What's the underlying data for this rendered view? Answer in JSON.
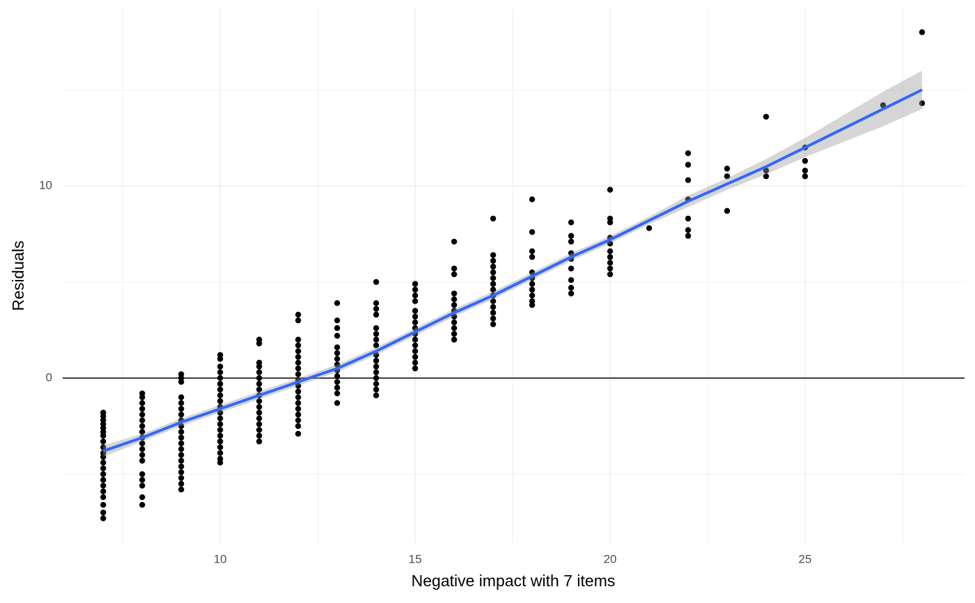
{
  "chart_data": {
    "type": "scatter",
    "x_label": "Negative impact with 7 items",
    "y_label": "Residuals",
    "xlim": [
      5.96,
      29.09
    ],
    "ylim": [
      -8.59,
      19.24
    ],
    "xticks": [
      10,
      15,
      20,
      25
    ],
    "yticks": [
      0,
      10
    ],
    "grid": true,
    "minor_grid": true,
    "hline": 0,
    "series": [
      {
        "type": "scatter",
        "color": "#000000",
        "x": [
          7,
          7,
          7,
          7,
          7,
          7,
          7,
          7,
          7,
          7,
          7,
          7,
          7,
          7,
          7,
          7,
          7,
          7,
          7,
          7,
          7,
          8,
          8,
          8,
          8,
          8,
          8,
          8,
          8,
          8,
          8,
          8,
          8,
          8,
          8,
          8,
          8,
          8,
          8,
          9,
          9,
          9,
          9,
          9,
          9,
          9,
          9,
          9,
          9,
          9,
          9,
          9,
          9,
          9,
          9,
          9,
          9,
          9,
          9,
          10,
          10,
          10,
          10,
          10,
          10,
          10,
          10,
          10,
          10,
          10,
          10,
          10,
          10,
          10,
          10,
          10,
          10,
          10,
          10,
          11,
          11,
          11,
          11,
          11,
          11,
          11,
          11,
          11,
          11,
          11,
          11,
          11,
          11,
          11,
          11,
          11,
          12,
          12,
          12,
          12,
          12,
          12,
          12,
          12,
          12,
          12,
          12,
          12,
          12,
          12,
          12,
          12,
          12,
          12,
          12,
          13,
          13,
          13,
          13,
          13,
          13,
          13,
          13,
          13,
          13,
          13,
          13,
          13,
          13,
          14,
          14,
          14,
          14,
          14,
          14,
          14,
          14,
          14,
          14,
          14,
          14,
          14,
          14,
          14,
          14,
          15,
          15,
          15,
          15,
          15,
          15,
          15,
          15,
          15,
          15,
          15,
          15,
          15,
          15,
          15,
          16,
          16,
          16,
          16,
          16,
          16,
          16,
          16,
          16,
          16,
          16,
          16,
          17,
          17,
          17,
          17,
          17,
          17,
          17,
          17,
          17,
          17,
          17,
          17,
          17,
          17,
          18,
          18,
          18,
          18,
          18,
          18,
          18,
          18,
          18,
          18,
          18,
          19,
          19,
          19,
          19,
          19,
          19,
          19,
          19,
          19,
          20,
          20,
          20,
          20,
          20,
          20,
          20,
          20,
          20,
          20,
          21,
          22,
          22,
          22,
          22,
          22,
          22,
          22,
          23,
          23,
          23,
          24,
          24,
          24,
          25,
          25,
          25,
          25,
          27,
          28,
          28
        ],
        "values": [
          -1.8,
          -2.0,
          -2.2,
          -2.4,
          -2.6,
          -2.8,
          -3.0,
          -3.3,
          -3.6,
          -3.9,
          -4.1,
          -4.4,
          -4.7,
          -5.0,
          -5.3,
          -5.6,
          -5.9,
          -6.2,
          -6.6,
          -7.0,
          -7.3,
          -0.8,
          -1.0,
          -1.3,
          -1.6,
          -1.9,
          -2.2,
          -2.5,
          -2.8,
          -3.1,
          -3.4,
          -3.7,
          -4.0,
          -4.3,
          -5.0,
          -5.3,
          -5.6,
          -6.2,
          -6.6,
          0.2,
          0,
          -0.2,
          -1.0,
          -1.3,
          -1.6,
          -1.9,
          -2.2,
          -2.5,
          -2.8,
          -3.1,
          -3.4,
          -3.7,
          -4.0,
          -4.3,
          -4.6,
          -4.9,
          -5.2,
          -5.5,
          -5.8,
          1.2,
          1.0,
          0.6,
          0.3,
          0,
          -0.3,
          -0.6,
          -0.9,
          -1.2,
          -1.5,
          -1.8,
          -2.1,
          -2.4,
          -2.7,
          -3.0,
          -3.3,
          -3.6,
          -3.9,
          -4.2,
          -4.4,
          2.0,
          1.8,
          0.8,
          0.6,
          0.3,
          0,
          -0.3,
          -0.6,
          -0.9,
          -1.2,
          -1.5,
          -1.8,
          -2.1,
          -2.4,
          -2.7,
          -3.0,
          -3.3,
          3.3,
          3.0,
          2.0,
          1.7,
          1.4,
          1.1,
          0.8,
          0.5,
          0.2,
          -0.1,
          -0.4,
          -0.7,
          -1.0,
          -1.3,
          -1.6,
          -1.9,
          -2.2,
          -2.5,
          -2.9,
          3.9,
          3.0,
          2.6,
          2.2,
          1.6,
          1.3,
          1.0,
          0.7,
          0.4,
          0.1,
          -0.2,
          -0.5,
          -0.8,
          -1.3,
          5.0,
          3.9,
          3.6,
          3.3,
          2.6,
          2.3,
          2.0,
          1.7,
          1.2,
          0.9,
          0.6,
          0.3,
          0,
          -0.3,
          -0.6,
          -0.9,
          4.9,
          4.6,
          4.3,
          4.0,
          3.5,
          3.2,
          2.9,
          2.6,
          2.3,
          2.0,
          1.7,
          1.4,
          1.1,
          0.8,
          0.5,
          7.1,
          5.7,
          5.4,
          4.4,
          4.1,
          3.8,
          3.5,
          3.2,
          2.9,
          2.6,
          2.3,
          2.0,
          8.3,
          6.4,
          6.1,
          5.8,
          5.5,
          5.2,
          4.9,
          4.6,
          4.3,
          4.0,
          3.7,
          3.4,
          3.1,
          2.8,
          9.3,
          7.6,
          6.6,
          6.3,
          5.5,
          5.2,
          4.9,
          4.6,
          4.3,
          4.0,
          3.8,
          8.1,
          7.4,
          7.1,
          6.5,
          6.2,
          5.7,
          5.1,
          4.7,
          4.4,
          9.8,
          8.3,
          8.1,
          7.3,
          7.0,
          6.6,
          6.3,
          6.0,
          5.7,
          5.4,
          7.8,
          11.7,
          11.1,
          10.3,
          9.3,
          8.3,
          7.7,
          7.4,
          10.9,
          10.5,
          8.7,
          13.6,
          10.8,
          10.5,
          12.0,
          11.3,
          10.8,
          10.5,
          14.2,
          18.0,
          14.3
        ]
      },
      {
        "type": "line",
        "color": "#3366FF",
        "band_color": "#999999",
        "x": [
          7,
          8,
          9,
          10,
          11,
          12,
          13,
          14,
          15,
          16,
          17,
          18,
          19,
          20,
          21,
          22,
          23,
          24,
          25,
          26,
          27,
          28
        ],
        "values": [
          -3.8,
          -3.1,
          -2.3,
          -1.6,
          -0.9,
          -0.2,
          0.5,
          1.4,
          2.4,
          3.4,
          4.3,
          5.3,
          6.3,
          7.2,
          8.2,
          9.2,
          10.1,
          11.0,
          12.0,
          13.0,
          14.0,
          15.0
        ],
        "upper": [
          -3.5,
          -2.9,
          -2.1,
          -1.4,
          -0.7,
          0.0,
          0.7,
          1.6,
          2.6,
          3.6,
          4.5,
          5.5,
          6.5,
          7.4,
          8.4,
          9.5,
          10.4,
          11.4,
          12.5,
          13.7,
          14.9,
          16.0
        ],
        "lower": [
          -4.1,
          -3.3,
          -2.5,
          -1.8,
          -1.1,
          -0.4,
          0.3,
          1.2,
          2.2,
          3.2,
          4.1,
          5.1,
          6.1,
          7.0,
          8.0,
          8.9,
          9.8,
          10.6,
          11.5,
          12.3,
          13.1,
          14.0
        ]
      }
    ]
  }
}
